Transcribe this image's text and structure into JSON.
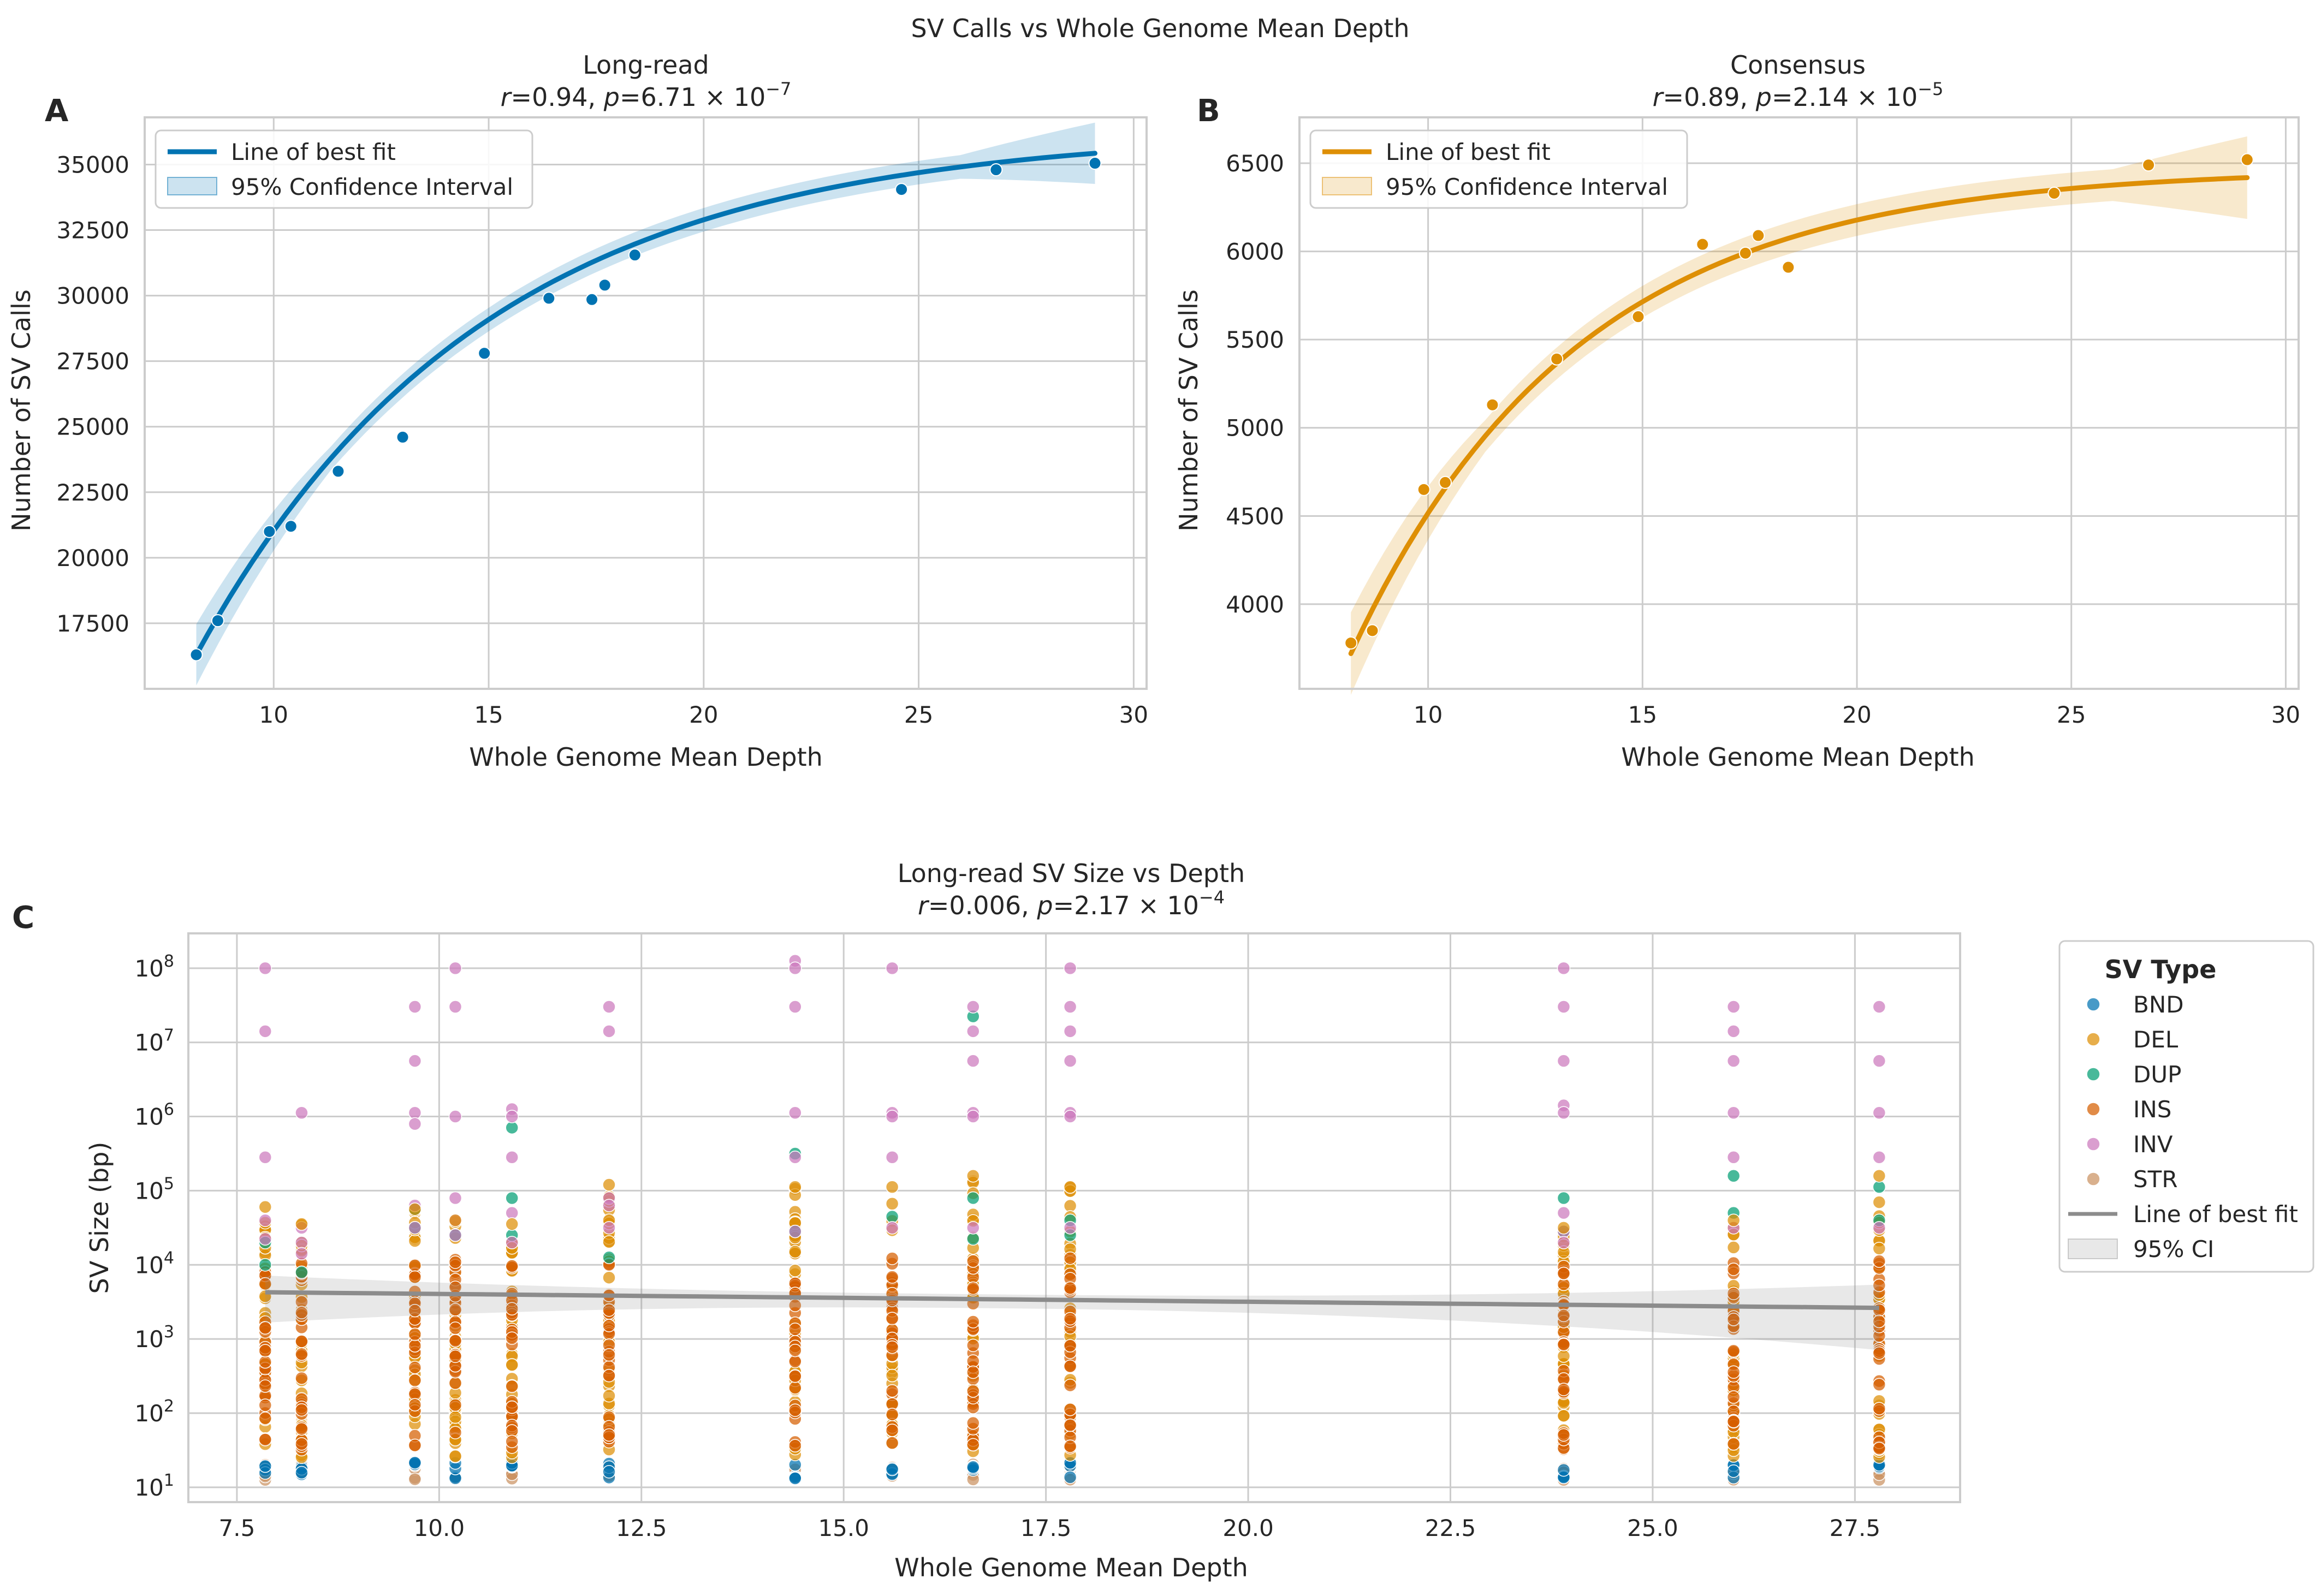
{
  "figure": {
    "suptitle": "SV Calls vs Whole Genome Mean Depth"
  },
  "chart_data": [
    {
      "panel": "A",
      "type": "scatter",
      "title": "Long-read",
      "stats": {
        "r": "0.94",
        "p_mantissa": "6.71",
        "p_exponent": "−7"
      },
      "xlabel": "Whole Genome Mean Depth",
      "ylabel": "Number of SV Calls",
      "xlim": [
        7.0,
        30.3
      ],
      "ylim": [
        15000,
        36800
      ],
      "xticks": [
        10,
        15,
        20,
        25,
        30
      ],
      "yticks": [
        17500,
        20000,
        22500,
        25000,
        27500,
        30000,
        32500,
        35000
      ],
      "grid": true,
      "legend_position": "upper-left",
      "legend": [
        "Line of best fit",
        "95% Confidence Interval"
      ],
      "color": "#0173b2",
      "points": [
        [
          8.2,
          16300
        ],
        [
          8.7,
          17600
        ],
        [
          9.9,
          21000
        ],
        [
          10.4,
          21200
        ],
        [
          11.5,
          23300
        ],
        [
          13.0,
          24600
        ],
        [
          14.9,
          27800
        ],
        [
          16.4,
          29900
        ],
        [
          17.4,
          29850
        ],
        [
          17.7,
          30400
        ],
        [
          18.4,
          31550
        ],
        [
          24.6,
          34050
        ],
        [
          26.8,
          34800
        ],
        [
          29.1,
          35050
        ]
      ],
      "fit": {
        "model": "exponential saturation",
        "a": 36300,
        "b": 20000,
        "k": 0.15,
        "x0": 8.2,
        "ci_halfwidth": 450
      }
    },
    {
      "panel": "B",
      "type": "scatter",
      "title": "Consensus",
      "stats": {
        "r": "0.89",
        "p_mantissa": "2.14",
        "p_exponent": "−5"
      },
      "xlabel": "Whole Genome Mean Depth",
      "ylabel": "Number of SV Calls",
      "xlim": [
        7.0,
        30.3
      ],
      "ylim": [
        3520,
        6760
      ],
      "xticks": [
        10,
        15,
        20,
        25,
        30
      ],
      "yticks": [
        4000,
        4500,
        5000,
        5500,
        6000,
        6500
      ],
      "grid": true,
      "legend_position": "upper-left",
      "legend": [
        "Line of best fit",
        "95% Confidence Interval"
      ],
      "color": "#de8f05",
      "points": [
        [
          8.2,
          3780
        ],
        [
          8.7,
          3850
        ],
        [
          9.9,
          4650
        ],
        [
          10.4,
          4690
        ],
        [
          11.5,
          5130
        ],
        [
          13.0,
          5390
        ],
        [
          14.9,
          5630
        ],
        [
          16.4,
          6040
        ],
        [
          17.4,
          5990
        ],
        [
          17.7,
          6090
        ],
        [
          18.4,
          5910
        ],
        [
          24.6,
          6330
        ],
        [
          26.8,
          6490
        ],
        [
          29.1,
          6520
        ]
      ],
      "fit": {
        "model": "exponential saturation",
        "a": 6470,
        "b": 2750,
        "k": 0.19,
        "x0": 8.2,
        "ci_halfwidth": 90
      }
    },
    {
      "panel": "C",
      "type": "scatter",
      "title": "Long-read SV Size vs Depth",
      "stats": {
        "r": "0.006",
        "p_mantissa": "2.17",
        "p_exponent": "−4"
      },
      "xlabel": "Whole Genome Mean Depth",
      "ylabel": "SV Size (bp)",
      "xlim": [
        6.9,
        28.8
      ],
      "ylog": true,
      "ylim_log10": [
        0.8,
        8.47
      ],
      "xticks": [
        "7.5",
        "10.0",
        "12.5",
        "15.0",
        "17.5",
        "20.0",
        "22.5",
        "25.0",
        "27.5"
      ],
      "yticks": [
        {
          "base": "10",
          "exp": "1"
        },
        {
          "base": "10",
          "exp": "2"
        },
        {
          "base": "10",
          "exp": "3"
        },
        {
          "base": "10",
          "exp": "4"
        },
        {
          "base": "10",
          "exp": "5"
        },
        {
          "base": "10",
          "exp": "6"
        },
        {
          "base": "10",
          "exp": "7"
        },
        {
          "base": "10",
          "exp": "8"
        }
      ],
      "grid": true,
      "legend_position": "outside-right",
      "legend_title": "SV Type",
      "categories": [
        {
          "name": "BND",
          "color": "#0173b2"
        },
        {
          "name": "DEL",
          "color": "#de8f05"
        },
        {
          "name": "DUP",
          "color": "#029e73"
        },
        {
          "name": "INS",
          "color": "#d55e00"
        },
        {
          "name": "INV",
          "color": "#cc78bc"
        },
        {
          "name": "STR",
          "color": "#ca9161"
        }
      ],
      "fit_label": "Line of best fit",
      "ci_label": "95% CI",
      "fit_color": "#8c8c8c",
      "depths": [
        7.85,
        8.3,
        9.7,
        10.2,
        10.9,
        12.1,
        14.4,
        15.6,
        16.6,
        17.8,
        23.9,
        26.0,
        27.8
      ],
      "fit": {
        "log10_y_at": [
          [
            7.85,
            3.63
          ],
          [
            27.8,
            3.42
          ]
        ]
      },
      "inv_log10_sizes": [
        [
          8.0,
          7.15,
          5.45,
          4.6,
          4.35
        ],
        [
          6.05,
          4.5,
          4.3,
          4.15
        ],
        [
          7.48,
          6.75,
          6.05,
          5.9,
          4.8,
          4.5
        ],
        [
          8.0,
          7.48,
          6.0,
          4.9,
          4.6,
          4.4
        ],
        [
          6.1,
          6.0,
          5.45,
          4.7,
          4.3
        ],
        [
          7.48,
          7.15,
          4.9,
          4.8,
          4.5
        ],
        [
          8.1,
          8.0,
          7.48,
          6.05,
          5.45,
          4.45
        ],
        [
          8.0,
          6.05,
          6.0,
          5.45,
          4.5
        ],
        [
          7.48,
          7.15,
          6.75,
          6.05,
          6.0,
          4.5
        ],
        [
          8.0,
          7.48,
          7.15,
          6.75,
          6.05,
          6.0,
          4.5
        ],
        [
          8.0,
          7.48,
          6.75,
          6.15,
          6.05,
          4.7,
          4.45,
          4.3
        ],
        [
          7.48,
          7.15,
          6.75,
          6.05,
          5.45,
          4.5
        ],
        [
          7.48,
          6.75,
          6.05,
          5.45,
          4.5
        ]
      ],
      "dup_log10_sizes": [
        [
          4.3,
          4.0
        ],
        [
          3.9
        ],
        [
          4.75,
          4.5
        ],
        [
          4.4
        ],
        [
          5.85,
          4.9,
          4.4
        ],
        [
          4.1
        ],
        [
          5.5,
          4.45
        ],
        [
          4.65
        ],
        [
          7.35,
          4.9,
          4.35
        ],
        [
          4.6,
          4.4
        ],
        [
          4.9,
          4.45
        ],
        [
          5.2,
          4.7
        ],
        [
          5.05,
          4.6
        ]
      ],
      "del_max_log10": [
        4.78,
        4.55,
        4.75,
        4.6,
        4.55,
        5.08,
        5.05,
        5.05,
        5.2,
        5.05,
        4.5,
        4.6,
        5.2
      ]
    }
  ]
}
